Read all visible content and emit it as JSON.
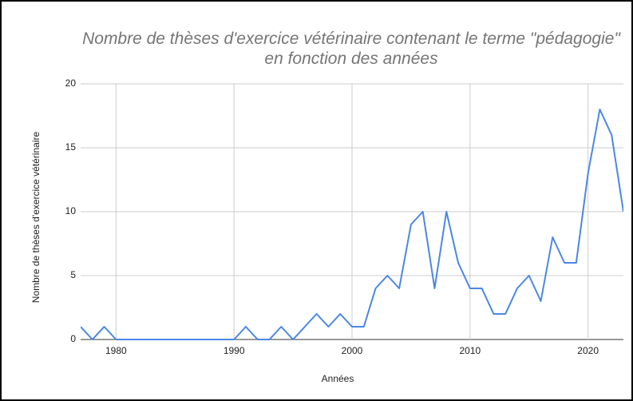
{
  "chart_data": {
    "type": "line",
    "title": "Nombre de thèses d'exercice vétérinaire contenant le terme \"pédagogie\" en fonction des années",
    "x_label": "Années",
    "y_label": "Nombre de thèses d'exercice vétérinaire",
    "x": [
      1977,
      1978,
      1979,
      1980,
      1981,
      1982,
      1983,
      1984,
      1985,
      1986,
      1987,
      1988,
      1989,
      1990,
      1991,
      1992,
      1993,
      1994,
      1995,
      1996,
      1997,
      1998,
      1999,
      2000,
      2001,
      2002,
      2003,
      2004,
      2005,
      2006,
      2007,
      2008,
      2009,
      2010,
      2011,
      2012,
      2013,
      2014,
      2015,
      2016,
      2017,
      2018,
      2019,
      2020,
      2021,
      2022,
      2023
    ],
    "series": [
      {
        "name": "Nombre de thèses d'exercice vétérinaire",
        "color": "#4a86e8",
        "values": [
          1,
          0,
          1,
          0,
          0,
          0,
          0,
          0,
          0,
          0,
          0,
          0,
          0,
          0,
          1,
          0,
          0,
          1,
          0,
          1,
          2,
          1,
          2,
          1,
          1,
          4,
          5,
          4,
          9,
          10,
          4,
          10,
          6,
          4,
          4,
          2,
          2,
          4,
          5,
          3,
          8,
          6,
          6,
          13,
          18,
          16,
          10
        ]
      }
    ],
    "xlim": [
      1977,
      2023
    ],
    "xticks": [
      1980,
      1990,
      2000,
      2010,
      2020
    ],
    "ylim": [
      0,
      20
    ],
    "yticks": [
      0,
      5,
      10,
      15,
      20
    ],
    "grid": true
  }
}
